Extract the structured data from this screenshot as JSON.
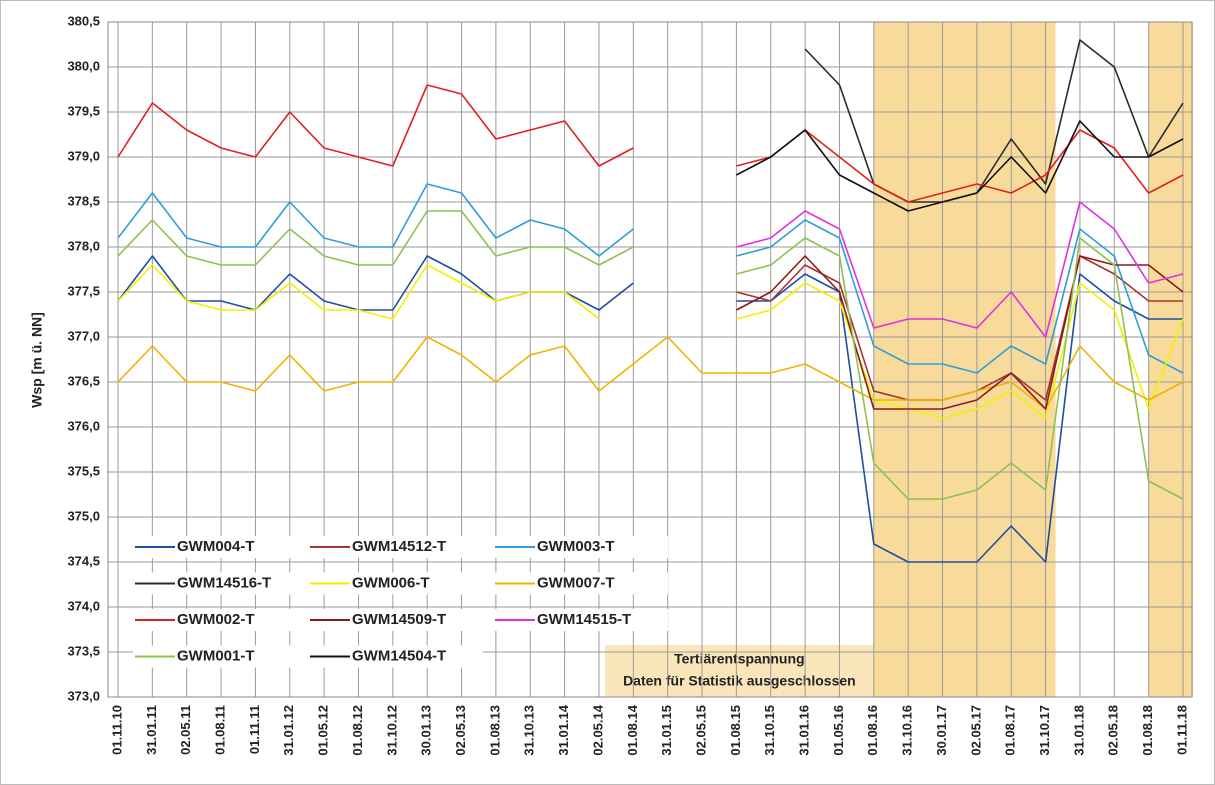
{
  "chart_data": {
    "type": "line",
    "y_label": "Wsp [m ü. NN]",
    "categories": [
      "01.11.10",
      "31.01.11",
      "02.05.11",
      "01.08.11",
      "01.11.11",
      "31.01.12",
      "01.05.12",
      "01.08.12",
      "31.10.12",
      "30.01.13",
      "02.05.13",
      "01.08.13",
      "31.10.13",
      "31.01.14",
      "02.05.14",
      "01.08.14",
      "31.01.15",
      "02.05.15",
      "01.08.15",
      "31.10.15",
      "31.01.16",
      "01.05.16",
      "01.08.16",
      "31.10.16",
      "30.01.17",
      "02.05.17",
      "01.08.17",
      "31.10.17",
      "31.01.18",
      "02.05.18",
      "01.08.18",
      "01.11.18"
    ],
    "ylim": [
      373.0,
      380.5
    ],
    "yticks": [
      {
        "value": 373.0,
        "label": "373,0"
      },
      {
        "value": 373.5,
        "label": "373,5"
      },
      {
        "value": 374.0,
        "label": "374,0"
      },
      {
        "value": 374.5,
        "label": "374,5"
      },
      {
        "value": 375.0,
        "label": "375,0"
      },
      {
        "value": 375.5,
        "label": "375,5"
      },
      {
        "value": 376.0,
        "label": "376,0"
      },
      {
        "value": 376.5,
        "label": "376,5"
      },
      {
        "value": 377.0,
        "label": "377,0"
      },
      {
        "value": 377.5,
        "label": "377,5"
      },
      {
        "value": 378.0,
        "label": "378,0"
      },
      {
        "value": 378.5,
        "label": "378,5"
      },
      {
        "value": 379.0,
        "label": "379,0"
      },
      {
        "value": 379.5,
        "label": "379,5"
      },
      {
        "value": 380.0,
        "label": "380,0"
      },
      {
        "value": 380.5,
        "label": "380,5"
      }
    ],
    "grid": true,
    "shaded_spans": [
      [
        "01.08.16",
        "31.10.17"
      ],
      [
        "01.08.18",
        "01.11.18"
      ]
    ],
    "annotation": {
      "lines": [
        "Tertiärentspannung",
        "Daten für Statistik ausgeschlossen"
      ],
      "span": [
        "02.05.14",
        "01.08.16"
      ]
    },
    "series": [
      {
        "name": "GWM004-T",
        "color": "#1f4e9e",
        "values": [
          377.4,
          377.9,
          377.4,
          377.4,
          377.3,
          377.7,
          377.4,
          377.3,
          377.3,
          377.9,
          377.7,
          377.4,
          377.5,
          377.5,
          377.3,
          377.6,
          null,
          null,
          377.4,
          377.4,
          377.7,
          377.5,
          374.7,
          374.5,
          374.5,
          374.5,
          374.9,
          374.5,
          377.7,
          377.4,
          377.2,
          377.2
        ]
      },
      {
        "name": "GWM14512-T",
        "color": "#a8342c",
        "values": [
          null,
          null,
          null,
          null,
          null,
          null,
          null,
          null,
          null,
          null,
          null,
          null,
          null,
          null,
          null,
          null,
          null,
          null,
          377.5,
          377.4,
          377.8,
          377.6,
          376.4,
          376.3,
          376.3,
          376.4,
          376.6,
          376.3,
          377.9,
          377.7,
          377.4,
          377.4
        ]
      },
      {
        "name": "GWM003-T",
        "color": "#2e9fd6",
        "values": [
          378.1,
          378.6,
          378.1,
          378.0,
          378.0,
          378.5,
          378.1,
          378.0,
          378.0,
          378.7,
          378.6,
          378.1,
          378.3,
          378.2,
          377.9,
          378.2,
          null,
          null,
          377.9,
          378.0,
          378.3,
          378.1,
          376.9,
          376.7,
          376.7,
          376.6,
          376.9,
          376.7,
          378.2,
          377.9,
          376.8,
          376.6
        ]
      },
      {
        "name": "GWM14516-T",
        "color": "#2a2a2a",
        "values": [
          null,
          null,
          null,
          null,
          null,
          null,
          null,
          null,
          null,
          null,
          null,
          null,
          null,
          null,
          null,
          null,
          null,
          null,
          null,
          null,
          380.2,
          379.8,
          378.7,
          378.5,
          378.5,
          378.6,
          379.2,
          378.7,
          380.3,
          380.0,
          379.0,
          379.6
        ]
      },
      {
        "name": "GWM006-T",
        "color": "#f2f000",
        "values": [
          377.4,
          377.8,
          377.4,
          377.3,
          377.3,
          377.6,
          377.3,
          377.3,
          377.2,
          377.8,
          377.6,
          377.4,
          377.5,
          377.5,
          377.2,
          null,
          null,
          null,
          377.2,
          377.3,
          377.6,
          377.4,
          376.3,
          376.2,
          376.1,
          376.2,
          376.4,
          376.1,
          377.6,
          377.3,
          376.2,
          377.2
        ]
      },
      {
        "name": "GWM007-T",
        "color": "#f0b400",
        "values": [
          376.5,
          376.9,
          376.5,
          376.5,
          376.4,
          376.8,
          376.4,
          376.5,
          376.5,
          377.0,
          376.8,
          376.5,
          376.8,
          376.9,
          376.4,
          376.7,
          377.0,
          376.6,
          376.6,
          376.6,
          376.7,
          376.5,
          376.3,
          376.3,
          376.3,
          376.4,
          376.5,
          376.2,
          376.9,
          376.5,
          376.3,
          376.5
        ]
      },
      {
        "name": "GWM002-T",
        "color": "#e02020",
        "values": [
          379.0,
          379.6,
          379.3,
          379.1,
          379.0,
          379.5,
          379.1,
          379.0,
          378.9,
          379.8,
          379.7,
          379.2,
          379.3,
          379.4,
          378.9,
          379.1,
          null,
          null,
          378.9,
          379.0,
          379.3,
          379.0,
          378.7,
          378.5,
          378.6,
          378.7,
          378.6,
          378.8,
          379.3,
          379.1,
          378.6,
          378.8
        ]
      },
      {
        "name": "GWM14509-T",
        "color": "#8b1a1a",
        "values": [
          null,
          null,
          null,
          null,
          null,
          null,
          null,
          null,
          null,
          null,
          null,
          null,
          null,
          null,
          null,
          null,
          null,
          null,
          377.3,
          377.5,
          377.9,
          377.5,
          376.2,
          376.2,
          376.2,
          376.3,
          376.6,
          376.2,
          377.9,
          377.8,
          377.8,
          377.5
        ]
      },
      {
        "name": "GWM14515-T",
        "color": "#e030e0",
        "values": [
          null,
          null,
          null,
          null,
          null,
          null,
          null,
          null,
          null,
          null,
          null,
          null,
          null,
          null,
          null,
          null,
          null,
          null,
          378.0,
          378.1,
          378.4,
          378.2,
          377.1,
          377.2,
          377.2,
          377.1,
          377.5,
          377.0,
          378.5,
          378.2,
          377.6,
          377.7
        ]
      },
      {
        "name": "GWM001-T",
        "color": "#8fc050",
        "values": [
          377.9,
          378.3,
          377.9,
          377.8,
          377.8,
          378.2,
          377.9,
          377.8,
          377.8,
          378.4,
          378.4,
          377.9,
          378.0,
          378.0,
          377.8,
          378.0,
          null,
          null,
          377.7,
          377.8,
          378.1,
          377.9,
          375.6,
          375.2,
          375.2,
          375.3,
          375.6,
          375.3,
          378.1,
          377.8,
          375.4,
          375.2
        ]
      },
      {
        "name": "GWM14504-T",
        "color": "#111111",
        "values": [
          null,
          null,
          null,
          null,
          null,
          null,
          null,
          null,
          null,
          null,
          null,
          null,
          null,
          null,
          null,
          null,
          null,
          null,
          378.8,
          379.0,
          379.3,
          378.8,
          378.6,
          378.4,
          378.5,
          378.6,
          379.0,
          378.6,
          379.4,
          379.0,
          379.0,
          379.2
        ]
      }
    ]
  }
}
